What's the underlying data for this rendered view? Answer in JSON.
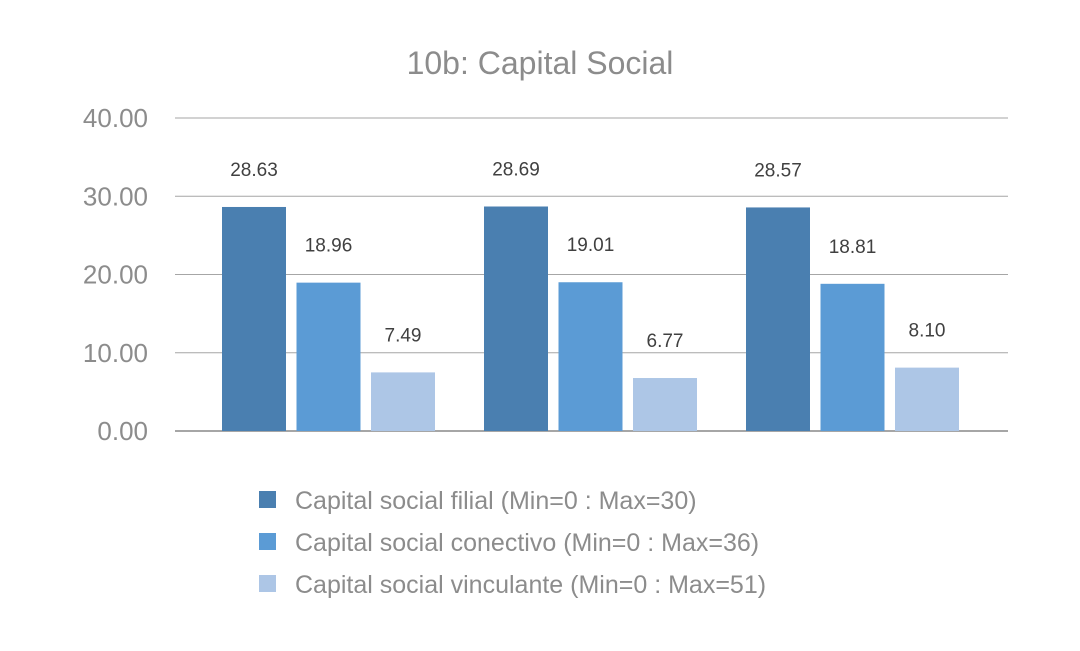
{
  "chart_data": {
    "type": "bar",
    "title": "10b: Capital Social",
    "categories": [
      "",
      "",
      ""
    ],
    "ylim": [
      0,
      40
    ],
    "yticks": [
      "0.00",
      "10.00",
      "20.00",
      "30.00",
      "40.00"
    ],
    "grid": true,
    "legend_position": "bottom",
    "series": [
      {
        "name": "Capital social filial (Min=0 : Max=30)",
        "color": "#4a7fb0",
        "values": [
          28.63,
          28.69,
          28.57
        ],
        "labels": [
          "28.63",
          "28.69",
          "28.57"
        ]
      },
      {
        "name": "Capital social conectivo (Min=0 : Max=36)",
        "color": "#5b9bd5",
        "values": [
          18.96,
          19.01,
          18.81
        ],
        "labels": [
          "18.96",
          "19.01",
          "18.81"
        ]
      },
      {
        "name": "Capital social vinculante (Min=0 : Max=51)",
        "color": "#adc6e6",
        "values": [
          7.49,
          6.77,
          8.1
        ],
        "labels": [
          "7.49",
          "6.77",
          "8.10"
        ]
      }
    ]
  }
}
